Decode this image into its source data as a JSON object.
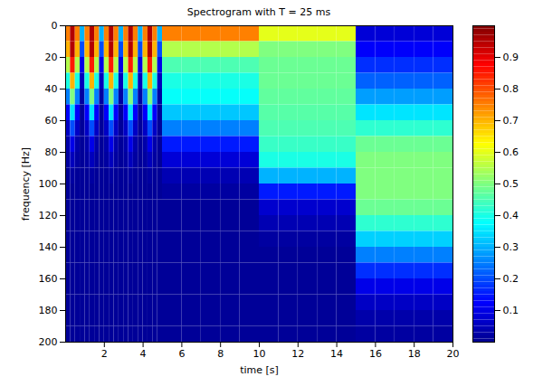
{
  "chart_data": {
    "type": "heatmap",
    "title": "Spectrogram with T = 25 ms",
    "x_label": "time [s]",
    "y_label": "frequency [Hz]",
    "xlim": [
      0,
      20
    ],
    "ylim": [
      0,
      200
    ],
    "xticks": [
      2,
      4,
      6,
      8,
      10,
      12,
      14,
      16,
      18,
      20
    ],
    "yticks": [
      0,
      20,
      40,
      60,
      80,
      100,
      120,
      140,
      160,
      180,
      200
    ],
    "x_edges": [
      0,
      0.25,
      0.5,
      0.75,
      1,
      1.25,
      1.5,
      1.75,
      2,
      2.25,
      2.5,
      2.75,
      3,
      3.25,
      3.5,
      3.75,
      4,
      4.25,
      4.5,
      4.75,
      5,
      6,
      7,
      8,
      9,
      10,
      11,
      12,
      13,
      14,
      15,
      16,
      17,
      18,
      19,
      20
    ],
    "y_edges": [
      0,
      10,
      20,
      30,
      40,
      50,
      60,
      70,
      80,
      90,
      100,
      110,
      120,
      130,
      140,
      150,
      160,
      170,
      180,
      190,
      200
    ],
    "z": [
      [
        0.75,
        0.95,
        0.75,
        0.3,
        0.75,
        0.95,
        0.75,
        0.3,
        0.75,
        0.95,
        0.75,
        0.3,
        0.75,
        0.95,
        0.75,
        0.3,
        0.75,
        0.95,
        0.75,
        0.3,
        0.75,
        0.75,
        0.75,
        0.75,
        0.75,
        0.6,
        0.6,
        0.6,
        0.6,
        0.6,
        0.08,
        0.08,
        0.08,
        0.08,
        0.08
      ],
      [
        0.7,
        0.95,
        0.7,
        0.2,
        0.7,
        0.95,
        0.7,
        0.2,
        0.7,
        0.95,
        0.7,
        0.2,
        0.7,
        0.95,
        0.7,
        0.2,
        0.7,
        0.95,
        0.7,
        0.2,
        0.55,
        0.55,
        0.55,
        0.55,
        0.55,
        0.5,
        0.5,
        0.5,
        0.5,
        0.5,
        0.12,
        0.12,
        0.12,
        0.12,
        0.12
      ],
      [
        0.55,
        0.85,
        0.55,
        0.1,
        0.55,
        0.85,
        0.55,
        0.1,
        0.55,
        0.85,
        0.55,
        0.1,
        0.55,
        0.85,
        0.55,
        0.1,
        0.55,
        0.85,
        0.55,
        0.1,
        0.45,
        0.45,
        0.45,
        0.45,
        0.45,
        0.48,
        0.48,
        0.48,
        0.48,
        0.48,
        0.17,
        0.17,
        0.17,
        0.17,
        0.17
      ],
      [
        0.4,
        0.7,
        0.4,
        0.05,
        0.4,
        0.7,
        0.4,
        0.05,
        0.4,
        0.7,
        0.4,
        0.05,
        0.4,
        0.7,
        0.4,
        0.05,
        0.4,
        0.7,
        0.4,
        0.05,
        0.4,
        0.4,
        0.4,
        0.4,
        0.4,
        0.48,
        0.48,
        0.48,
        0.48,
        0.48,
        0.22,
        0.22,
        0.22,
        0.22,
        0.22
      ],
      [
        0.25,
        0.5,
        0.25,
        0.02,
        0.25,
        0.5,
        0.25,
        0.02,
        0.25,
        0.5,
        0.25,
        0.02,
        0.25,
        0.5,
        0.25,
        0.02,
        0.25,
        0.5,
        0.25,
        0.02,
        0.38,
        0.38,
        0.38,
        0.38,
        0.38,
        0.47,
        0.47,
        0.47,
        0.47,
        0.47,
        0.28,
        0.28,
        0.28,
        0.28,
        0.28
      ],
      [
        0.12,
        0.35,
        0.12,
        0.01,
        0.12,
        0.35,
        0.12,
        0.01,
        0.12,
        0.35,
        0.12,
        0.01,
        0.12,
        0.35,
        0.12,
        0.01,
        0.12,
        0.35,
        0.12,
        0.01,
        0.32,
        0.32,
        0.32,
        0.32,
        0.32,
        0.46,
        0.46,
        0.46,
        0.46,
        0.46,
        0.35,
        0.35,
        0.35,
        0.35,
        0.35
      ],
      [
        0.06,
        0.2,
        0.06,
        0.01,
        0.06,
        0.2,
        0.06,
        0.01,
        0.06,
        0.2,
        0.06,
        0.01,
        0.06,
        0.2,
        0.06,
        0.01,
        0.06,
        0.2,
        0.06,
        0.01,
        0.25,
        0.25,
        0.25,
        0.25,
        0.25,
        0.45,
        0.45,
        0.45,
        0.45,
        0.45,
        0.42,
        0.42,
        0.42,
        0.42,
        0.42
      ],
      [
        0.03,
        0.1,
        0.03,
        0.01,
        0.03,
        0.1,
        0.03,
        0.01,
        0.03,
        0.1,
        0.03,
        0.01,
        0.03,
        0.1,
        0.03,
        0.01,
        0.03,
        0.1,
        0.03,
        0.01,
        0.15,
        0.15,
        0.15,
        0.15,
        0.15,
        0.43,
        0.43,
        0.43,
        0.43,
        0.43,
        0.48,
        0.48,
        0.48,
        0.48,
        0.48
      ],
      [
        0.02,
        0.05,
        0.02,
        0.01,
        0.02,
        0.05,
        0.02,
        0.01,
        0.02,
        0.05,
        0.02,
        0.01,
        0.02,
        0.05,
        0.02,
        0.01,
        0.02,
        0.05,
        0.02,
        0.01,
        0.08,
        0.08,
        0.08,
        0.08,
        0.08,
        0.4,
        0.4,
        0.4,
        0.4,
        0.4,
        0.5,
        0.5,
        0.5,
        0.5,
        0.5
      ],
      [
        0.01,
        0.02,
        0.01,
        0.01,
        0.01,
        0.02,
        0.01,
        0.01,
        0.01,
        0.02,
        0.01,
        0.01,
        0.01,
        0.02,
        0.01,
        0.01,
        0.01,
        0.02,
        0.01,
        0.01,
        0.04,
        0.04,
        0.04,
        0.04,
        0.04,
        0.3,
        0.3,
        0.3,
        0.3,
        0.3,
        0.5,
        0.5,
        0.5,
        0.5,
        0.5
      ],
      [
        0.01,
        0.01,
        0.01,
        0.01,
        0.01,
        0.01,
        0.01,
        0.01,
        0.01,
        0.01,
        0.01,
        0.01,
        0.01,
        0.01,
        0.01,
        0.01,
        0.01,
        0.01,
        0.01,
        0.01,
        0.02,
        0.02,
        0.02,
        0.02,
        0.02,
        0.15,
        0.15,
        0.15,
        0.15,
        0.15,
        0.5,
        0.5,
        0.5,
        0.5,
        0.5
      ],
      [
        0.01,
        0.01,
        0.01,
        0.01,
        0.01,
        0.01,
        0.01,
        0.01,
        0.01,
        0.01,
        0.01,
        0.01,
        0.01,
        0.01,
        0.01,
        0.01,
        0.01,
        0.01,
        0.01,
        0.01,
        0.01,
        0.01,
        0.01,
        0.01,
        0.01,
        0.07,
        0.07,
        0.07,
        0.07,
        0.07,
        0.48,
        0.48,
        0.48,
        0.48,
        0.48
      ],
      [
        0.01,
        0.01,
        0.01,
        0.01,
        0.01,
        0.01,
        0.01,
        0.01,
        0.01,
        0.01,
        0.01,
        0.01,
        0.01,
        0.01,
        0.01,
        0.01,
        0.01,
        0.01,
        0.01,
        0.01,
        0.01,
        0.01,
        0.01,
        0.01,
        0.01,
        0.04,
        0.04,
        0.04,
        0.04,
        0.04,
        0.42,
        0.42,
        0.42,
        0.42,
        0.42
      ],
      [
        0.01,
        0.01,
        0.01,
        0.01,
        0.01,
        0.01,
        0.01,
        0.01,
        0.01,
        0.01,
        0.01,
        0.01,
        0.01,
        0.01,
        0.01,
        0.01,
        0.01,
        0.01,
        0.01,
        0.01,
        0.01,
        0.01,
        0.01,
        0.01,
        0.01,
        0.02,
        0.02,
        0.02,
        0.02,
        0.02,
        0.33,
        0.33,
        0.33,
        0.33,
        0.33
      ],
      [
        0.01,
        0.01,
        0.01,
        0.01,
        0.01,
        0.01,
        0.01,
        0.01,
        0.01,
        0.01,
        0.01,
        0.01,
        0.01,
        0.01,
        0.01,
        0.01,
        0.01,
        0.01,
        0.01,
        0.01,
        0.01,
        0.01,
        0.01,
        0.01,
        0.01,
        0.01,
        0.01,
        0.01,
        0.01,
        0.01,
        0.25,
        0.25,
        0.25,
        0.25,
        0.25
      ],
      [
        0.01,
        0.01,
        0.01,
        0.01,
        0.01,
        0.01,
        0.01,
        0.01,
        0.01,
        0.01,
        0.01,
        0.01,
        0.01,
        0.01,
        0.01,
        0.01,
        0.01,
        0.01,
        0.01,
        0.01,
        0.01,
        0.01,
        0.01,
        0.01,
        0.01,
        0.01,
        0.01,
        0.01,
        0.01,
        0.01,
        0.17,
        0.17,
        0.17,
        0.17,
        0.17
      ],
      [
        0.01,
        0.01,
        0.01,
        0.01,
        0.01,
        0.01,
        0.01,
        0.01,
        0.01,
        0.01,
        0.01,
        0.01,
        0.01,
        0.01,
        0.01,
        0.01,
        0.01,
        0.01,
        0.01,
        0.01,
        0.01,
        0.01,
        0.01,
        0.01,
        0.01,
        0.01,
        0.01,
        0.01,
        0.01,
        0.01,
        0.1,
        0.1,
        0.1,
        0.1,
        0.1
      ],
      [
        0.01,
        0.01,
        0.01,
        0.01,
        0.01,
        0.01,
        0.01,
        0.01,
        0.01,
        0.01,
        0.01,
        0.01,
        0.01,
        0.01,
        0.01,
        0.01,
        0.01,
        0.01,
        0.01,
        0.01,
        0.01,
        0.01,
        0.01,
        0.01,
        0.01,
        0.01,
        0.01,
        0.01,
        0.01,
        0.01,
        0.06,
        0.06,
        0.06,
        0.06,
        0.06
      ],
      [
        0.01,
        0.01,
        0.01,
        0.01,
        0.01,
        0.01,
        0.01,
        0.01,
        0.01,
        0.01,
        0.01,
        0.01,
        0.01,
        0.01,
        0.01,
        0.01,
        0.01,
        0.01,
        0.01,
        0.01,
        0.01,
        0.01,
        0.01,
        0.01,
        0.01,
        0.01,
        0.01,
        0.01,
        0.01,
        0.01,
        0.03,
        0.03,
        0.03,
        0.03,
        0.03
      ],
      [
        0.01,
        0.01,
        0.01,
        0.01,
        0.01,
        0.01,
        0.01,
        0.01,
        0.01,
        0.01,
        0.01,
        0.01,
        0.01,
        0.01,
        0.01,
        0.01,
        0.01,
        0.01,
        0.01,
        0.01,
        0.01,
        0.01,
        0.01,
        0.01,
        0.01,
        0.01,
        0.01,
        0.01,
        0.01,
        0.01,
        0.02,
        0.02,
        0.02,
        0.02,
        0.02
      ]
    ],
    "colorbar": {
      "range": [
        0,
        1
      ],
      "ticks": [
        0.1,
        0.2,
        0.3,
        0.4,
        0.5,
        0.6,
        0.7,
        0.8,
        0.9
      ]
    }
  }
}
